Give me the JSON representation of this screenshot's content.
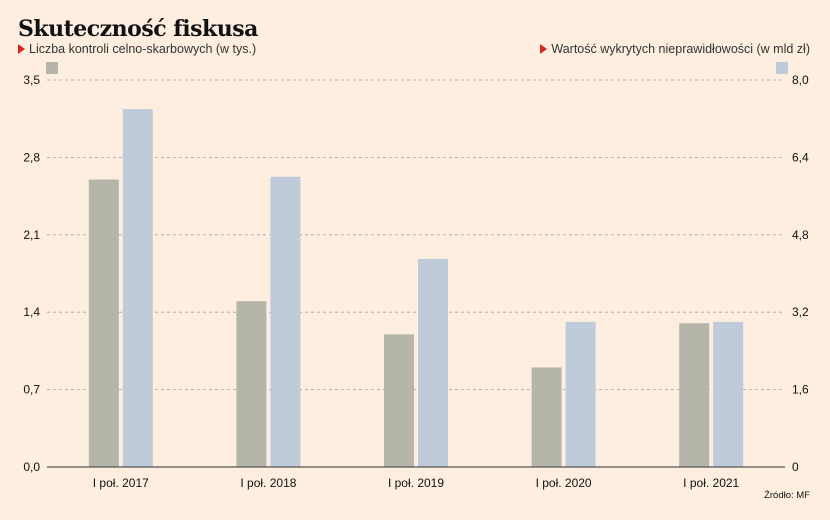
{
  "title": "Skuteczność fiskusa",
  "legend": {
    "left": "Liczba kontroli celno-skarbowych (w tys.)",
    "right": "Wartość wykrytych nieprawidłowości (w mld zł)"
  },
  "source": "Źródło: MF",
  "colors": {
    "background": "#fdeee0",
    "series1": "#b6b5aa",
    "series2": "#bfcadb",
    "marker": "#d9251c"
  },
  "chart_data": {
    "type": "bar",
    "categories": [
      "I poł. 2017",
      "I poł. 2018",
      "I poł. 2019",
      "I poł. 2020",
      "I poł. 2021"
    ],
    "series": [
      {
        "name": "Liczba kontroli celno-skarbowych (w tys.)",
        "axis": "left",
        "values": [
          2.6,
          1.5,
          1.2,
          0.9,
          1.3
        ]
      },
      {
        "name": "Wartość wykrytych nieprawidłowości (w mld zł)",
        "axis": "right",
        "values": [
          7.4,
          6.0,
          4.3,
          3.0,
          3.0
        ]
      }
    ],
    "y_left": {
      "ticks": [
        "0,0",
        "0,7",
        "1,4",
        "2,1",
        "2,8",
        "3,5"
      ],
      "ylim": [
        0,
        3.5
      ]
    },
    "y_right": {
      "ticks": [
        "0",
        "1,6",
        "3,2",
        "4,8",
        "6,4",
        "8,0"
      ],
      "ylim": [
        0,
        8.0
      ]
    },
    "grid": "dashed horizontal",
    "legend_position": "top"
  }
}
